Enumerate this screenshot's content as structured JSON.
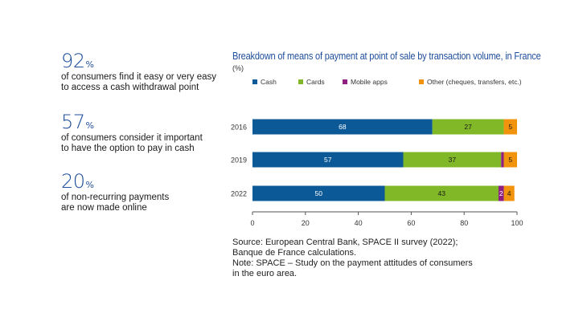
{
  "stats": [
    {
      "value": "92",
      "unit": "%",
      "lines": [
        "of consumers find it easy or very easy",
        "to access a cash withdrawal point"
      ]
    },
    {
      "value": "57",
      "unit": "%",
      "lines": [
        "of consumers consider it important",
        "to have the option to pay in cash"
      ]
    },
    {
      "value": "20",
      "unit": "%",
      "lines": [
        "of non-recurring payments",
        "are now made online"
      ]
    }
  ],
  "colors": {
    "cash": "#0b5a97",
    "cards": "#80b827",
    "mobile": "#8e1f81",
    "other": "#f2930d",
    "title": "#1f4e9c"
  },
  "chart_data": {
    "type": "bar",
    "orientation": "horizontal",
    "stacked": true,
    "title": "Breakdown of means of payment at point of sale by transaction volume, in France",
    "unit_label": "(%)",
    "categories": [
      "2016",
      "2019",
      "2022"
    ],
    "series": [
      {
        "name": "Cash",
        "values": [
          68,
          57,
          50
        ],
        "labels": [
          "68",
          "57",
          "50"
        ]
      },
      {
        "name": "Cards",
        "values": [
          27,
          37,
          43
        ],
        "labels": [
          "27",
          "37",
          "43"
        ]
      },
      {
        "name": "Mobile apps",
        "values": [
          0,
          1,
          2
        ],
        "labels": [
          "",
          "",
          "2"
        ]
      },
      {
        "name": "Other (cheques, transfers, etc.)",
        "values": [
          5,
          5,
          4
        ],
        "labels": [
          "5",
          "5",
          "4"
        ]
      }
    ],
    "xlim": [
      0,
      100
    ],
    "xticks": [
      "0",
      "20",
      "40",
      "60",
      "80",
      "100"
    ],
    "xtick_values": [
      0,
      20,
      40,
      60,
      80,
      100
    ],
    "legend_position": "top",
    "grid": false
  },
  "source": [
    "Source: European Central Bank, SPACE II survey (2022);",
    "Banque de France calculations.",
    "Note: SPACE – Study on the payment attitudes of consumers",
    "in the euro area."
  ]
}
